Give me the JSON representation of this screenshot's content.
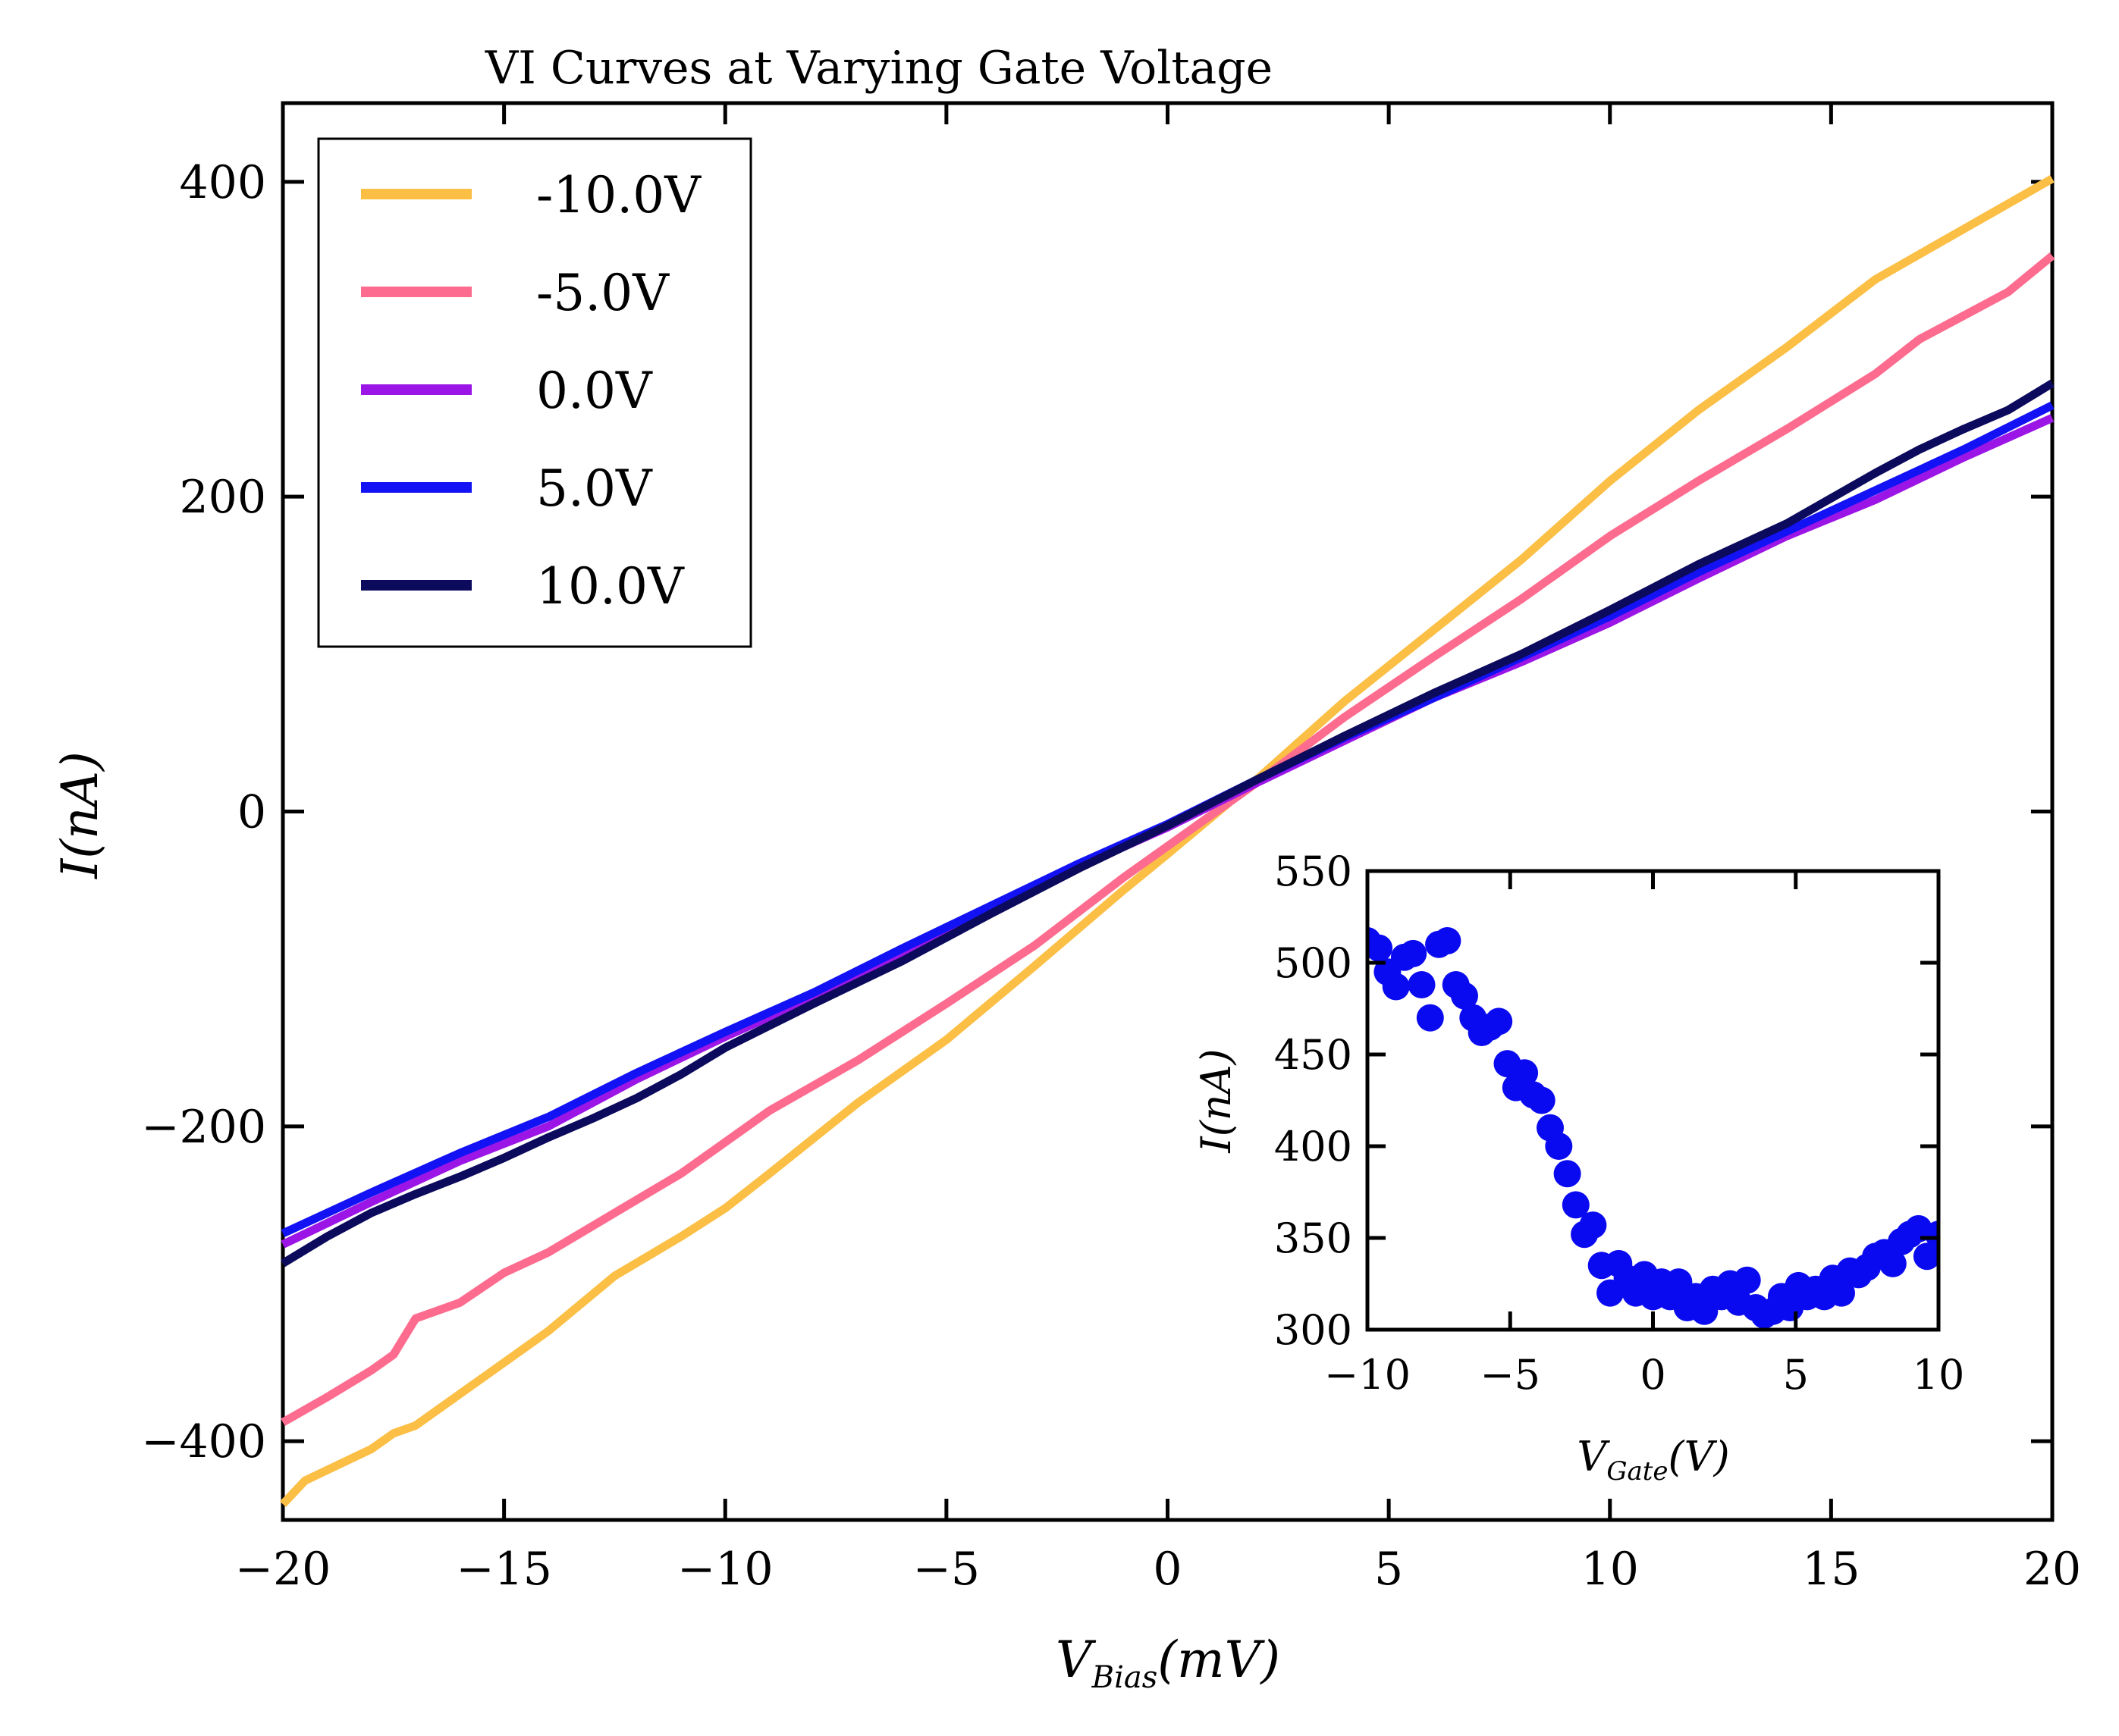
{
  "chart_data": [
    {
      "type": "line",
      "title": "VI Curves at Varying Gate Voltage",
      "xlabel": {
        "main": "V",
        "sub": "Bias",
        "unit": "(mV)"
      },
      "ylabel": {
        "main": "I",
        "unit": "(nA)"
      },
      "xlim": [
        -20,
        20
      ],
      "ylim": [
        -450,
        450
      ],
      "xticks": [
        -20,
        -15,
        -10,
        -5,
        0,
        5,
        10,
        15,
        20
      ],
      "xtick_labels": [
        "−20",
        "−15",
        "−10",
        "−5",
        "0",
        "5",
        "10",
        "15",
        "20"
      ],
      "yticks": [
        -400,
        -200,
        0,
        200,
        400
      ],
      "ytick_labels": [
        "−400",
        "−200",
        "0",
        "200",
        "400"
      ],
      "grid": false,
      "legend_position": "upper-left",
      "series": [
        {
          "name": "-10.0V",
          "color": "#fbbf45",
          "x": [
            -20,
            -19.5,
            -18,
            -17.5,
            -17,
            -16,
            -14,
            -12.5,
            -11,
            -10,
            -9,
            -7,
            -5,
            -3,
            -1,
            0,
            2,
            4,
            6,
            8,
            10,
            12,
            14,
            16,
            18,
            20
          ],
          "y": [
            -440,
            -425,
            -405,
            -395,
            -390,
            -370,
            -330,
            -295,
            -270,
            -252,
            -230,
            -185,
            -145,
            -98,
            -50,
            -27,
            20,
            70,
            115,
            160,
            210,
            255,
            295,
            338,
            370,
            402
          ]
        },
        {
          "name": "-5.0V",
          "color": "#fd6c8e",
          "x": [
            -20,
            -19,
            -18,
            -17.5,
            -17,
            -16,
            -15,
            -14,
            -12.5,
            -11,
            -10,
            -9,
            -7,
            -5,
            -3,
            -1,
            0,
            2,
            4,
            6,
            8,
            10,
            12,
            14,
            16,
            17,
            18,
            19,
            20
          ],
          "y": [
            -388,
            -372,
            -355,
            -345,
            -322,
            -312,
            -293,
            -280,
            -255,
            -230,
            -210,
            -190,
            -158,
            -122,
            -85,
            -42,
            -22,
            18,
            60,
            98,
            135,
            175,
            210,
            243,
            278,
            300,
            315,
            330,
            353
          ]
        },
        {
          "name": "0.0V",
          "color": "#9b16e6",
          "x": [
            -20,
            -18,
            -16,
            -14,
            -12,
            -10,
            -8,
            -6,
            -4,
            -2,
            0,
            2,
            4,
            6,
            8,
            10,
            12,
            14,
            16,
            18,
            20
          ],
          "y": [
            -275,
            -248,
            -222,
            -200,
            -170,
            -143,
            -118,
            -90,
            -62,
            -35,
            -10,
            18,
            45,
            72,
            95,
            120,
            148,
            175,
            198,
            225,
            250
          ]
        },
        {
          "name": "5.0V",
          "color": "#1212f5",
          "x": [
            -20,
            -18,
            -16,
            -14,
            -12,
            -10,
            -8,
            -6,
            -4,
            -2,
            0,
            2,
            4,
            6,
            8,
            10,
            12,
            14,
            16,
            18,
            20
          ],
          "y": [
            -268,
            -242,
            -217,
            -194,
            -166,
            -140,
            -115,
            -87,
            -60,
            -33,
            -8,
            20,
            47,
            72,
            98,
            124,
            152,
            178,
            204,
            230,
            258
          ]
        },
        {
          "name": "10.0V",
          "color": "#0c0a5c",
          "x": [
            -20,
            -19,
            -18,
            -17,
            -16,
            -15,
            -14,
            -13,
            -12,
            -11,
            -10,
            -8,
            -6,
            -4,
            -2,
            0,
            2,
            4,
            6,
            8,
            10,
            12,
            14,
            16,
            17,
            18,
            19,
            20
          ],
          "y": [
            -287,
            -270,
            -255,
            -243,
            -232,
            -220,
            -207,
            -195,
            -182,
            -167,
            -150,
            -122,
            -95,
            -65,
            -36,
            -9,
            20,
            48,
            75,
            100,
            128,
            157,
            183,
            215,
            230,
            243,
            255,
            272
          ]
        }
      ]
    },
    {
      "type": "scatter",
      "title": "",
      "xlabel": {
        "main": "V",
        "sub": "Gate",
        "unit": "(V)"
      },
      "ylabel": {
        "main": "I",
        "unit": "(nA)"
      },
      "xlim": [
        -10,
        10
      ],
      "ylim": [
        300,
        550
      ],
      "xticks": [
        -10,
        -5,
        0,
        5,
        10
      ],
      "xtick_labels": [
        "−10",
        "−5",
        "0",
        "5",
        "10"
      ],
      "yticks": [
        300,
        350,
        400,
        450,
        500,
        550
      ],
      "ytick_labels": [
        "300",
        "350",
        "400",
        "450",
        "500",
        "550"
      ],
      "grid": false,
      "legend_position": "none",
      "series": [
        {
          "color": "#0a0af0",
          "x": [
            -10,
            -9.6,
            -9.3,
            -9,
            -8.7,
            -8.4,
            -8.1,
            -7.8,
            -7.5,
            -7.2,
            -6.9,
            -6.6,
            -6.3,
            -6,
            -5.7,
            -5.4,
            -5.1,
            -4.8,
            -4.5,
            -4.2,
            -3.9,
            -3.6,
            -3.3,
            -3,
            -2.7,
            -2.4,
            -2.1,
            -1.8,
            -1.5,
            -1.2,
            -0.9,
            -0.6,
            -0.3,
            0,
            0.3,
            0.6,
            0.9,
            1.2,
            1.5,
            1.8,
            2.1,
            2.4,
            2.7,
            3,
            3.3,
            3.6,
            3.9,
            4.2,
            4.5,
            4.8,
            5.1,
            5.4,
            5.7,
            6,
            6.3,
            6.6,
            6.9,
            7.2,
            7.5,
            7.8,
            8.1,
            8.4,
            8.7,
            9,
            9.3,
            9.6,
            10
          ],
          "y": [
            512,
            508,
            495,
            487,
            503,
            505,
            488,
            470,
            510,
            512,
            488,
            482,
            470,
            462,
            465,
            468,
            445,
            432,
            440,
            428,
            425,
            410,
            400,
            385,
            368,
            352,
            357,
            335,
            320,
            336,
            328,
            320,
            330,
            318,
            326,
            318,
            326,
            312,
            318,
            310,
            322,
            318,
            325,
            315,
            327,
            312,
            308,
            310,
            318,
            312,
            324,
            318,
            322,
            318,
            328,
            320,
            332,
            330,
            334,
            340,
            342,
            336,
            348,
            352,
            355,
            340,
            352
          ]
        }
      ]
    }
  ]
}
